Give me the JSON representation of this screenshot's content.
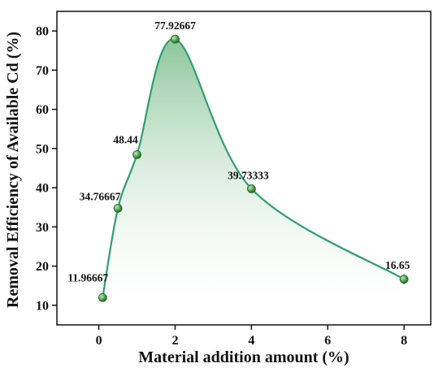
{
  "chart_data": {
    "type": "line",
    "title": "",
    "xlabel": "Material addition amount (%)",
    "ylabel": "Removal Efficiency of Available Cd (%)",
    "xlim": [
      -1.1,
      8.7
    ],
    "ylim": [
      5,
      85
    ],
    "xticks": [
      0,
      2,
      4,
      6,
      8
    ],
    "yticks": [
      10,
      20,
      30,
      40,
      50,
      60,
      70,
      80
    ],
    "x_tick_labels": [
      "0",
      "2",
      "4",
      "6",
      "8"
    ],
    "y_tick_labels": [
      "10",
      "20",
      "30",
      "40",
      "50",
      "60",
      "70",
      "80"
    ],
    "grid": false,
    "legend": "none",
    "series": [
      {
        "x": [
          0.1,
          0.5,
          1,
          2,
          4,
          8
        ],
        "y": [
          11.96667,
          34.76667,
          48.44,
          77.92667,
          39.73333,
          16.65
        ],
        "errors": [
          0.6,
          0.8,
          0.7,
          0.9,
          0.8,
          1.3
        ],
        "labels": [
          "11.96667",
          "34.76667",
          "48.44",
          "77.92667",
          "39.73333",
          "16.65"
        ]
      }
    ],
    "colors": {
      "line": "#2e9e6e",
      "fill_top": "#7fbf8f",
      "fill_bottom": "#ffffff",
      "marker": "#1b6e1b",
      "marker_highlight": "#bfe8bf"
    }
  }
}
